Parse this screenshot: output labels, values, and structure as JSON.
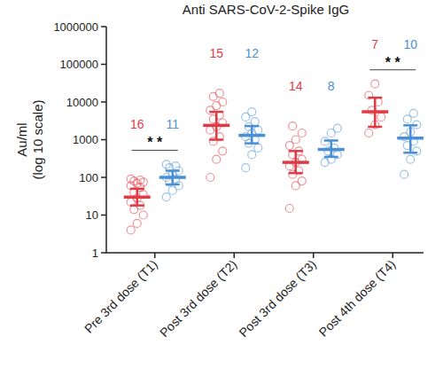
{
  "chart_data": {
    "type": "scatter",
    "title": "Anti SARS-CoV-2-Spike IgG",
    "y_label": [
      "Au/ml",
      "(log 10 scale)"
    ],
    "categories": [
      "Pre 3rd dose (T1)",
      "Post 3rd dose (T2)",
      "Post 3rd dose (T3)",
      "Post 4th dose (T4)"
    ],
    "log": "y",
    "grid": false,
    "ylim": [
      1,
      1000000
    ],
    "yticks": [
      1,
      10,
      100,
      1000,
      10000,
      100000,
      1000000
    ],
    "series": [
      {
        "color": "#e03a45",
        "n": [
          16,
          15,
          14,
          7
        ],
        "values": [
          30,
          2400,
          250,
          5500
        ],
        "lower": [
          18,
          1000,
          130,
          2200
        ],
        "upper": [
          50,
          5500,
          500,
          13000
        ],
        "points": [
          [
            4,
            6,
            10,
            14,
            18,
            22,
            28,
            35,
            40,
            55,
            60,
            70,
            75,
            80,
            85,
            90
          ],
          [
            100,
            300,
            500,
            900,
            1200,
            1800,
            2200,
            2800,
            3500,
            4500,
            6000,
            8000,
            10000,
            14000,
            17000
          ],
          [
            15,
            60,
            80,
            120,
            150,
            200,
            250,
            300,
            400,
            500,
            700,
            1000,
            1500,
            2300
          ],
          [
            1500,
            2500,
            4000,
            6000,
            10000,
            15000,
            30000
          ]
        ]
      },
      {
        "color": "#4a8fd6",
        "n": [
          11,
          12,
          8,
          10
        ],
        "values": [
          100,
          1300,
          550,
          1100
        ],
        "lower": [
          65,
          800,
          350,
          450
        ],
        "upper": [
          150,
          2300,
          950,
          2400
        ],
        "points": [
          [
            30,
            45,
            60,
            75,
            90,
            100,
            120,
            150,
            180,
            200,
            220
          ],
          [
            180,
            400,
            600,
            800,
            1000,
            1200,
            1500,
            1800,
            2200,
            3000,
            4000,
            5500
          ],
          [
            250,
            300,
            400,
            500,
            600,
            900,
            1500,
            2000
          ],
          [
            120,
            300,
            500,
            700,
            900,
            1200,
            1600,
            2500,
            3500,
            5000
          ]
        ]
      }
    ],
    "significance": [
      {
        "index": 0,
        "label": "* *"
      },
      {
        "index": 3,
        "label": "* *"
      }
    ]
  }
}
